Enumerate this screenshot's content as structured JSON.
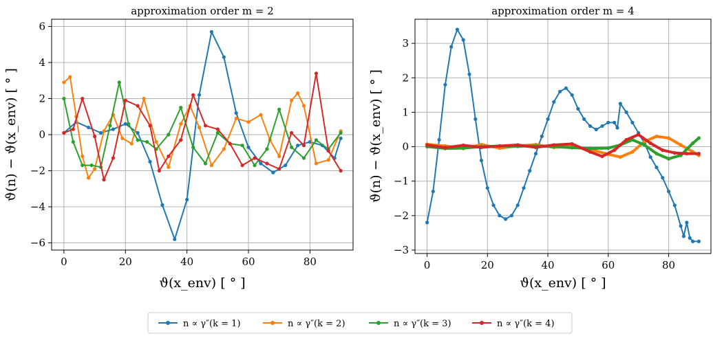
{
  "figure": {
    "legend": {
      "placement": "bottom-center",
      "entries": [
        {
          "label": "n ∝ γ″(k = 1)",
          "color": "#1f77b4"
        },
        {
          "label": "n ∝ γ″(k = 2)",
          "color": "#ff7f0e"
        },
        {
          "label": "n ∝ γ″(k = 3)",
          "color": "#2ca02c"
        },
        {
          "label": "n ∝ γ″(k = 4)",
          "color": "#d62728"
        }
      ]
    }
  },
  "chart_data": [
    {
      "type": "line",
      "title": "approximation order m = 2",
      "xlabel": "ϑ(x_env)  [ ° ]",
      "ylabel": "ϑ(n) − ϑ(x_env)  [ ° ]",
      "xlim": [
        -4,
        94
      ],
      "ylim": [
        -6.4,
        6.4
      ],
      "xticks": [
        0,
        20,
        40,
        60,
        80
      ],
      "yticks": [
        -6,
        -4,
        -2,
        0,
        2,
        4,
        6
      ],
      "grid": true,
      "markers": true,
      "series": [
        {
          "name": "n ∝ γ″(k = 1)",
          "color": "#1f77b4",
          "x": [
            0,
            4,
            8,
            12,
            16,
            20,
            24,
            28,
            32,
            36,
            40,
            44,
            48,
            52,
            56,
            60,
            64,
            68,
            72,
            76,
            80,
            84,
            88,
            90
          ],
          "y": [
            0.1,
            0.7,
            0.4,
            0.1,
            0.3,
            0.6,
            0.1,
            -1.5,
            -3.9,
            -5.8,
            -3.6,
            2.2,
            5.7,
            4.3,
            1.2,
            -0.7,
            -1.6,
            -2.1,
            -1.7,
            -0.6,
            -0.4,
            -0.6,
            -1.3,
            -0.2
          ]
        },
        {
          "name": "n ∝ γ″(k = 2)",
          "color": "#ff7f0e",
          "x": [
            0,
            2,
            4,
            6,
            8,
            10,
            13,
            16,
            19,
            22,
            26,
            30,
            34,
            38,
            41,
            44,
            48,
            52,
            56,
            60,
            64,
            67,
            70,
            74,
            76,
            78,
            82,
            86,
            90
          ],
          "y": [
            2.9,
            3.2,
            1.0,
            -1.2,
            -2.4,
            -1.9,
            0.2,
            1.1,
            -0.2,
            -0.5,
            2.0,
            -0.4,
            -1.8,
            0.6,
            1.6,
            0.4,
            -1.7,
            -0.8,
            0.9,
            0.7,
            1.1,
            -0.3,
            -1.2,
            1.9,
            2.3,
            1.6,
            -1.6,
            -1.4,
            0.2
          ]
        },
        {
          "name": "n ∝ γ″(k = 3)",
          "color": "#2ca02c",
          "x": [
            0,
            3,
            6,
            9,
            12,
            15,
            18,
            21,
            24,
            27,
            30,
            34,
            38,
            42,
            46,
            50,
            54,
            58,
            62,
            66,
            70,
            74,
            78,
            82,
            86,
            90
          ],
          "y": [
            2.0,
            -0.4,
            -1.7,
            -1.7,
            -1.8,
            0.5,
            2.9,
            0.6,
            -0.3,
            -0.4,
            -0.8,
            0.0,
            1.5,
            -0.7,
            -1.6,
            0.1,
            -0.5,
            -0.6,
            -1.7,
            -0.8,
            1.4,
            -0.7,
            -1.3,
            -0.3,
            -0.8,
            0.1
          ]
        },
        {
          "name": "n ∝ γ″(k = 4)",
          "color": "#d62728",
          "x": [
            0,
            3,
            6,
            10,
            13,
            16,
            20,
            24,
            28,
            31,
            34,
            38,
            42,
            46,
            50,
            54,
            58,
            62,
            66,
            70,
            74,
            78,
            82,
            86,
            90
          ],
          "y": [
            0.1,
            0.3,
            2.0,
            -0.1,
            -2.5,
            -1.3,
            1.9,
            1.6,
            0.5,
            -2.0,
            -1.2,
            -0.3,
            2.2,
            0.5,
            0.3,
            -0.5,
            -1.7,
            -1.3,
            -1.6,
            -1.9,
            0.1,
            -0.6,
            3.4,
            -0.9,
            -2.0
          ]
        }
      ]
    },
    {
      "type": "line",
      "title": "approximation order m = 4",
      "xlabel": "ϑ(x_env)  [ ° ]",
      "ylabel": "ϑ(n) − ϑ(x_env)  [ ° ]",
      "xlim": [
        -4,
        94
      ],
      "ylim": [
        -3.1,
        3.7
      ],
      "xticks": [
        0,
        20,
        40,
        60,
        80
      ],
      "yticks": [
        -3,
        -2,
        -1,
        0,
        1,
        2,
        3
      ],
      "grid": true,
      "markers": true,
      "series": [
        {
          "name": "n ∝ γ″(k = 1)",
          "color": "#1f77b4",
          "x": [
            0,
            2,
            4,
            6,
            8,
            10,
            12,
            14,
            16,
            18,
            20,
            22,
            24,
            26,
            28,
            30,
            32,
            34,
            36,
            38,
            40,
            42,
            44,
            46,
            48,
            50,
            52,
            54,
            56,
            58,
            60,
            62,
            63,
            64,
            66,
            68,
            70,
            72,
            74,
            76,
            78,
            80,
            82,
            84,
            85,
            86,
            87,
            88,
            90
          ],
          "y": [
            -2.2,
            -1.3,
            0.2,
            1.8,
            2.9,
            3.4,
            3.1,
            2.1,
            0.8,
            -0.4,
            -1.2,
            -1.7,
            -2.0,
            -2.1,
            -2.0,
            -1.7,
            -1.2,
            -0.7,
            -0.2,
            0.3,
            0.8,
            1.3,
            1.6,
            1.7,
            1.5,
            1.1,
            0.8,
            0.6,
            0.5,
            0.6,
            0.7,
            0.7,
            0.55,
            1.25,
            1.0,
            0.7,
            0.4,
            0.1,
            -0.3,
            -0.6,
            -0.9,
            -1.3,
            -1.7,
            -2.3,
            -2.6,
            -2.2,
            -2.65,
            -2.75,
            -2.75
          ]
        },
        {
          "name": "n ∝ γ″(k = 2)",
          "color": "#ff7f0e",
          "x": [
            0,
            6,
            12,
            18,
            24,
            30,
            36,
            42,
            48,
            54,
            60,
            64,
            68,
            72,
            76,
            80,
            84,
            88,
            90
          ],
          "y": [
            0.07,
            0.02,
            -0.05,
            0.06,
            -0.04,
            0.02,
            0.06,
            -0.02,
            0.0,
            -0.08,
            -0.22,
            -0.3,
            -0.15,
            0.15,
            0.3,
            0.25,
            0.05,
            -0.15,
            -0.25
          ]
        },
        {
          "name": "n ∝ γ″(k = 3)",
          "color": "#2ca02c",
          "x": [
            0,
            6,
            12,
            18,
            24,
            30,
            36,
            42,
            48,
            54,
            60,
            64,
            68,
            72,
            76,
            80,
            84,
            88,
            90
          ],
          "y": [
            0.0,
            -0.05,
            -0.04,
            0.0,
            0.02,
            0.01,
            0.02,
            0.0,
            -0.03,
            -0.05,
            -0.04,
            0.05,
            0.2,
            0.05,
            -0.2,
            -0.35,
            -0.25,
            0.1,
            0.25
          ]
        },
        {
          "name": "n ∝ γ″(k = 4)",
          "color": "#d62728",
          "x": [
            0,
            6,
            12,
            18,
            24,
            30,
            36,
            42,
            48,
            54,
            58,
            62,
            66,
            70,
            74,
            78,
            82,
            86,
            90
          ],
          "y": [
            0.05,
            -0.03,
            0.04,
            -0.02,
            0.02,
            0.05,
            -0.02,
            0.05,
            0.08,
            -0.15,
            -0.28,
            -0.1,
            0.2,
            0.35,
            0.1,
            -0.1,
            -0.18,
            -0.2,
            -0.2
          ]
        }
      ]
    }
  ]
}
